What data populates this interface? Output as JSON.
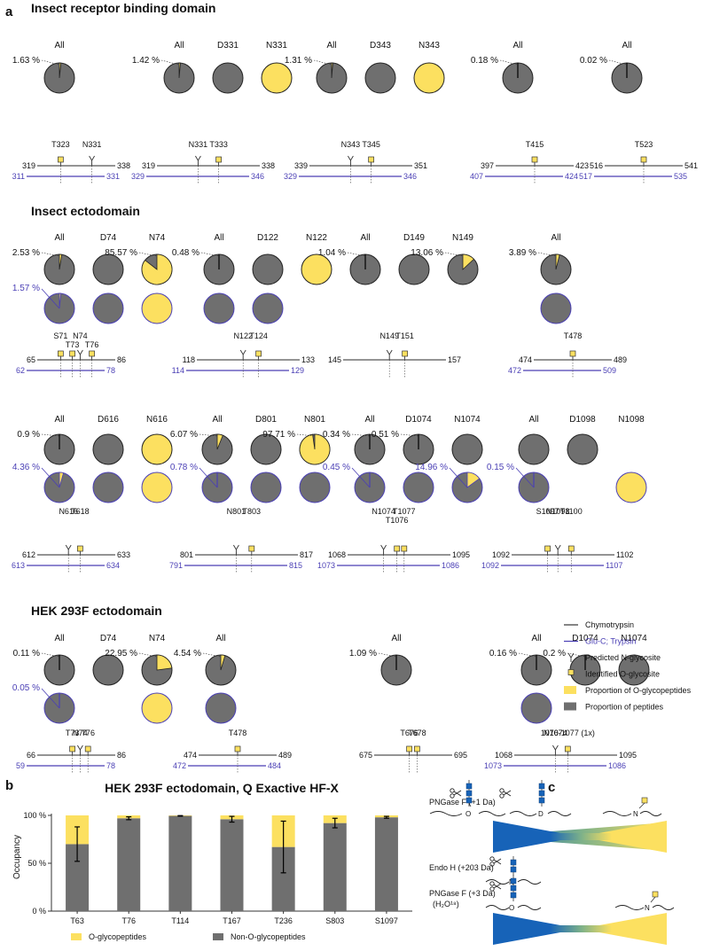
{
  "panel_a": {
    "letter": "a",
    "legend": {
      "items": [
        {
          "kind": "line-black",
          "label": "Chymotrypsin"
        },
        {
          "kind": "line-blue",
          "label": "Glu-C; Trypsin"
        },
        {
          "kind": "n-glyco",
          "label": "Predicted N-glycosite"
        },
        {
          "kind": "o-glyco",
          "label": "Identified O-glycosite"
        },
        {
          "kind": "yellow-square",
          "label": "Proportion of O-glycopeptides"
        },
        {
          "kind": "gray-square",
          "label": "Proportion of peptides"
        }
      ]
    },
    "sections": [
      {
        "title": "Insect receptor binding domain",
        "groups": [
          {
            "cols": [
              "All"
            ],
            "pies": [
              [
                0.0163,
                null
              ]
            ],
            "labels": [
              "1.63 %"
            ],
            "blue_labels": [],
            "sites": [
              {
                "n": "T323",
                "t": "o",
                "pos": 0.3
              },
              {
                "n": "N331",
                "t": "n",
                "pos": 0.7
              }
            ],
            "black": [
              "319",
              "338"
            ],
            "blue": [
              "311",
              "331"
            ]
          },
          {
            "cols": [
              "All",
              "D331",
              "N331"
            ],
            "pies": [
              [
                0.0142,
                null
              ],
              [
                0,
                null
              ],
              [
                1,
                null
              ]
            ],
            "labels": [
              "1.42 %"
            ],
            "blue_labels": [],
            "sites": [
              {
                "n": "N331",
                "t": "n",
                "pos": 0.4
              },
              {
                "n": "T333",
                "t": "o",
                "pos": 0.6
              }
            ],
            "black": [
              "319",
              "338"
            ],
            "blue": [
              "329",
              "346"
            ]
          },
          {
            "cols": [
              "All",
              "D343",
              "N343"
            ],
            "pies": [
              [
                0.0131,
                null
              ],
              [
                0,
                null
              ],
              [
                1,
                null
              ]
            ],
            "labels": [
              "1.31 %"
            ],
            "blue_labels": [],
            "sites": [
              {
                "n": "N343",
                "t": "n",
                "pos": 0.4
              },
              {
                "n": "T345",
                "t": "o",
                "pos": 0.6
              }
            ],
            "black": [
              "339",
              "351"
            ],
            "blue": [
              "329",
              "346"
            ]
          },
          {
            "cols": [
              "All"
            ],
            "pies": [
              [
                0.0018,
                null
              ]
            ],
            "labels": [
              "0.18 %"
            ],
            "blue_labels": [],
            "sites": [
              {
                "n": "T415",
                "t": "o",
                "pos": 0.5
              }
            ],
            "black": [
              "397",
              "423"
            ],
            "blue": [
              "407",
              "424"
            ]
          },
          {
            "cols": [
              "All"
            ],
            "pies": [
              [
                0.0002,
                null
              ]
            ],
            "labels": [
              "0.02 %"
            ],
            "blue_labels": [],
            "sites": [
              {
                "n": "T523",
                "t": "o",
                "pos": 0.5
              }
            ],
            "black": [
              "516",
              "541"
            ],
            "blue": [
              "517",
              "535"
            ]
          }
        ]
      },
      {
        "title": "Insect ectodomain",
        "groups": [
          {
            "cols": [
              "All",
              "D74",
              "N74"
            ],
            "pies": [
              [
                0.0253,
                0.0157
              ],
              [
                0,
                0
              ],
              [
                0.8557,
                1
              ]
            ],
            "labels": [
              "2.53 %",
              "",
              "85.57 %"
            ],
            "blue_labels": [
              "1.57 %"
            ],
            "sites": [
              {
                "n": "S71",
                "t": "o",
                "pos": 0.3
              },
              {
                "n": "T73",
                "t": "o",
                "pos": 0.45
              },
              {
                "n": "N74",
                "t": "n",
                "pos": 0.55
              },
              {
                "n": "T76",
                "t": "o",
                "pos": 0.7
              }
            ],
            "black": [
              "65",
              "86"
            ],
            "blue": [
              "62",
              "78"
            ]
          },
          {
            "cols": [
              "All",
              "D122",
              "N122"
            ],
            "pies": [
              [
                0.0048,
                0
              ],
              [
                0,
                0
              ],
              [
                1,
                null
              ]
            ],
            "labels": [
              "0.48 %"
            ],
            "blue_labels": [],
            "sites": [
              {
                "n": "N122",
                "t": "n",
                "pos": 0.45
              },
              {
                "n": "T124",
                "t": "o",
                "pos": 0.6
              }
            ],
            "black": [
              "118",
              "133"
            ],
            "blue": [
              "114",
              "129"
            ]
          },
          {
            "cols": [
              "All",
              "D149",
              "N149"
            ],
            "pies": [
              [
                0.0104,
                null
              ],
              [
                0,
                null
              ],
              [
                0.1306,
                null
              ]
            ],
            "labels": [
              "1.04 %",
              "",
              "13.06 %"
            ],
            "blue_labels": [],
            "sites": [
              {
                "n": "N149",
                "t": "n",
                "pos": 0.45
              },
              {
                "n": "T151",
                "t": "o",
                "pos": 0.6
              }
            ],
            "black": [
              "145",
              "157"
            ],
            "blue": []
          },
          {
            "cols": [
              "All"
            ],
            "pies": [
              [
                0.0389,
                0
              ]
            ],
            "labels": [
              "3.89 %"
            ],
            "blue_labels": [],
            "sites": [
              {
                "n": "T478",
                "t": "o",
                "pos": 0.5
              }
            ],
            "black": [
              "474",
              "489"
            ],
            "blue": [
              "472",
              "509"
            ]
          }
        ]
      },
      {
        "title": "",
        "groups": [
          {
            "cols": [
              "All",
              "D616",
              "N616"
            ],
            "pies": [
              [
                0.009,
                0.0436
              ],
              [
                0,
                0
              ],
              [
                1,
                1
              ]
            ],
            "labels": [
              "0.9 %"
            ],
            "blue_labels": [
              "4.36 %"
            ],
            "sites": [
              {
                "n": "N616",
                "t": "n",
                "pos": 0.4
              },
              {
                "n": "T618",
                "t": "o",
                "pos": 0.55
              }
            ],
            "black": [
              "612",
              "633"
            ],
            "blue": [
              "613",
              "634"
            ]
          },
          {
            "cols": [
              "All",
              "D801",
              "N801"
            ],
            "pies": [
              [
                0.0607,
                0.0078
              ],
              [
                0,
                0
              ],
              [
                0.9771,
                0
              ]
            ],
            "labels": [
              "6.07 %",
              "",
              "97.71 %"
            ],
            "blue_labels": [
              "0.78 %"
            ],
            "sites": [
              {
                "n": "N801",
                "t": "n",
                "pos": 0.4
              },
              {
                "n": "T803",
                "t": "o",
                "pos": 0.55
              }
            ],
            "black": [
              "801",
              "817"
            ],
            "blue": [
              "791",
              "815"
            ]
          },
          {
            "cols": [
              "All",
              "D1074",
              "N1074"
            ],
            "pies": [
              [
                0.0034,
                0.0045
              ],
              [
                0.0051,
                0
              ],
              [
                0,
                0.1496
              ]
            ],
            "labels": [
              "0.34 %",
              "0.51 %"
            ],
            "blue_labels": [
              "0.45 %",
              "",
              "14.96 %"
            ],
            "sites": [
              {
                "n": "N1074",
                "t": "n",
                "pos": 0.35
              },
              {
                "n": "T1076",
                "t": "o",
                "pos": 0.48
              },
              {
                "n": "T1077",
                "t": "o",
                "pos": 0.55
              }
            ],
            "black": [
              "1068",
              "1095"
            ],
            "blue": [
              "1073",
              "1086"
            ]
          },
          {
            "cols": [
              "All",
              "D1098",
              "N1098"
            ],
            "pies": [
              [
                0,
                0.0015
              ],
              [
                0,
                null
              ],
              [
                null,
                1
              ]
            ],
            "labels": [],
            "blue_labels": [
              "0.15 %"
            ],
            "sites": [
              {
                "n": "S1097",
                "t": "o",
                "pos": 0.35
              },
              {
                "n": "N1098",
                "t": "n",
                "pos": 0.45
              },
              {
                "n": "T1100",
                "t": "o",
                "pos": 0.58
              }
            ],
            "black": [
              "1092",
              "1102"
            ],
            "blue": [
              "1092",
              "1107"
            ]
          }
        ]
      },
      {
        "title": "HEK 293F ectodomain",
        "groups": [
          {
            "cols": [
              "All",
              "D74",
              "N74"
            ],
            "pies": [
              [
                0.0011,
                0.0005
              ],
              [
                0,
                null
              ],
              [
                0.2295,
                1
              ]
            ],
            "labels": [
              "0.11 %",
              "",
              "22.95 %"
            ],
            "blue_labels": [
              "0.05 %"
            ],
            "sites": [
              {
                "n": "T73",
                "t": "o",
                "pos": 0.45
              },
              {
                "n": "N74",
                "t": "n",
                "pos": 0.55
              },
              {
                "n": "T76",
                "t": "o",
                "pos": 0.65
              }
            ],
            "black": [
              "66",
              "86"
            ],
            "blue": [
              "59",
              "78"
            ]
          },
          {
            "cols": [
              "All"
            ],
            "pies": [
              [
                0.0454,
                0
              ]
            ],
            "labels": [
              "4.54 %"
            ],
            "blue_labels": [],
            "sites": [
              {
                "n": "T478",
                "t": "o",
                "pos": 0.5
              }
            ],
            "black": [
              "474",
              "489"
            ],
            "blue": [
              "472",
              "484"
            ]
          },
          {
            "cols": [
              "All"
            ],
            "pies": [
              [
                0.0109,
                null
              ]
            ],
            "labels": [
              "1.09 %"
            ],
            "blue_labels": [],
            "sites": [
              {
                "n": "T676",
                "t": "o",
                "pos": 0.45
              },
              {
                "n": "T678",
                "t": "o",
                "pos": 0.55
              }
            ],
            "black": [
              "675",
              "695"
            ],
            "blue": []
          },
          {
            "cols": [
              "All",
              "D1074",
              "N1074"
            ],
            "pies": [
              [
                0.0016,
                0
              ],
              [
                0.002,
                null
              ],
              [
                0,
                null
              ]
            ],
            "labels": [
              "0.16 %",
              "0.2 %"
            ],
            "blue_labels": [],
            "sites": [
              {
                "n": "N1074",
                "t": "n",
                "pos": 0.4
              },
              {
                "n": "1076-1077 (1x)",
                "t": "o",
                "pos": 0.52
              }
            ],
            "black": [
              "1068",
              "1095"
            ],
            "blue": [
              "1073",
              "1086"
            ]
          }
        ]
      }
    ]
  },
  "chart_data": {
    "type": "bar",
    "letter": "b",
    "title": "HEK 293F ectodomain, Q Exactive HF-X",
    "ylabel": "Occupancy",
    "yticks": [
      "0 %",
      "50 %",
      "100 %"
    ],
    "ylim": [
      0,
      100
    ],
    "categories": [
      "T63",
      "T76",
      "T114",
      "T167",
      "T236",
      "S803",
      "S1097"
    ],
    "series": [
      {
        "name": "Non-O-glycopeptides",
        "color": "#6f6f6f",
        "values": [
          70,
          97,
          99.5,
          96,
          67,
          92,
          98
        ]
      },
      {
        "name": "O-glycopeptides",
        "color": "#fce060",
        "values": [
          30,
          3,
          0.5,
          4,
          33,
          8,
          2
        ]
      }
    ],
    "error": [
      18,
      1.5,
      0.3,
      3,
      27,
      5,
      1
    ],
    "stacked": true,
    "legend": "bottom"
  },
  "panel_c": {
    "letter": "c",
    "labels": [
      "PNGase F (+1 Da)",
      "Endo H (+203 Da)",
      "PNGase F (+3 Da)",
      "(H₂O¹⁸)"
    ]
  },
  "colors": {
    "yellow": "#fce060",
    "gray": "#6f6f6f",
    "blue": "#4a3fb5",
    "gradient_blue": "#1763b8"
  }
}
